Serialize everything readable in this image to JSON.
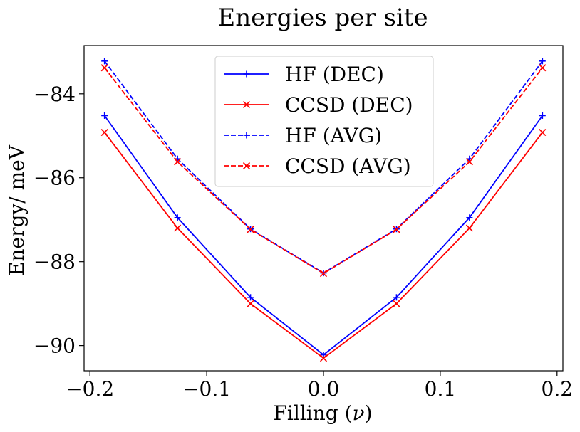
{
  "chart_data": {
    "type": "line",
    "title": "Energies per site",
    "xlabel": "Filling (ν)",
    "xlabel_parts": {
      "text": "Filling (",
      "symbol": "ν",
      "close": ")"
    },
    "ylabel": "Energy/ meV",
    "xlim": [
      -0.205,
      0.205
    ],
    "ylim": [
      -90.6,
      -82.85
    ],
    "xticks": [
      -0.2,
      -0.1,
      0.0,
      0.1,
      0.2
    ],
    "xtick_labels": [
      "−0.2",
      "−0.1",
      "0.0",
      "0.1",
      "0.2"
    ],
    "yticks": [
      -90,
      -88,
      -86,
      -84
    ],
    "ytick_labels": [
      "−90",
      "−88",
      "−86",
      "−84"
    ],
    "x": [
      -0.1875,
      -0.125,
      -0.0625,
      0.0,
      0.0625,
      0.125,
      0.1875
    ],
    "legend_position": "top-center",
    "series": [
      {
        "name": "HF (DEC)",
        "color": "#0000ff",
        "dash": "solid",
        "marker": "plus",
        "values": [
          -84.52,
          -86.95,
          -88.85,
          -90.22,
          -88.85,
          -86.95,
          -84.52
        ]
      },
      {
        "name": "CCSD (DEC)",
        "color": "#ff0000",
        "dash": "solid",
        "marker": "x",
        "values": [
          -84.92,
          -87.2,
          -89.0,
          -90.3,
          -89.0,
          -87.2,
          -84.92
        ]
      },
      {
        "name": "HF (AVG)",
        "color": "#0000ff",
        "dash": "dashed",
        "marker": "plus",
        "values": [
          -83.22,
          -85.55,
          -87.22,
          -88.27,
          -87.22,
          -85.55,
          -83.22
        ]
      },
      {
        "name": "CCSD (AVG)",
        "color": "#ff0000",
        "dash": "dashed",
        "marker": "x",
        "values": [
          -83.38,
          -85.62,
          -87.23,
          -88.28,
          -87.23,
          -85.62,
          -83.38
        ]
      }
    ]
  }
}
